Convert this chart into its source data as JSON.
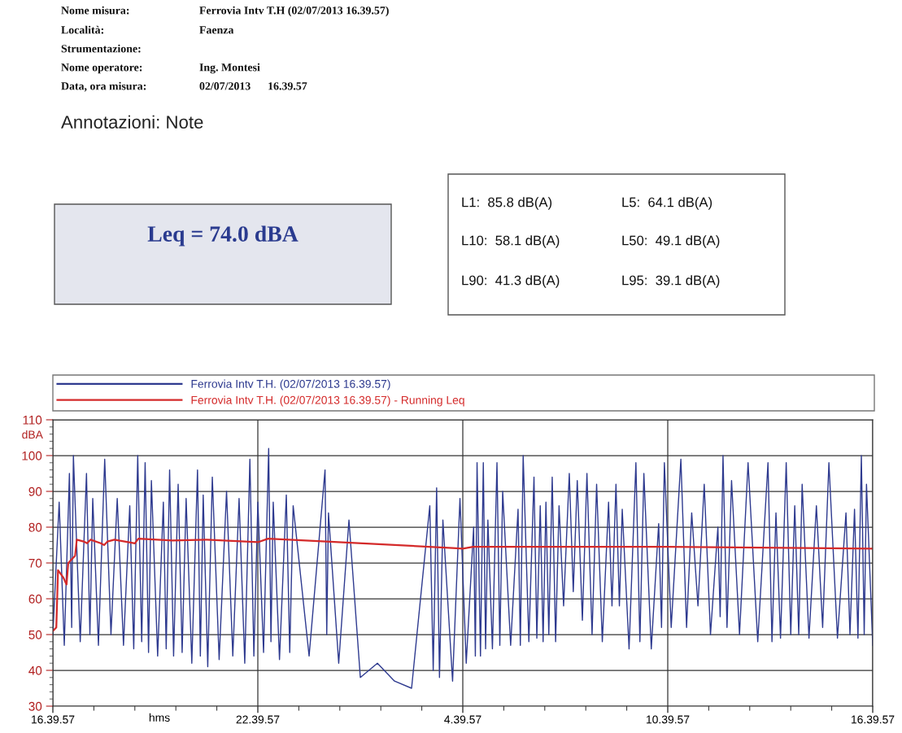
{
  "chart_data": {
    "type": "line",
    "annotations": [
      "Nome misura:",
      "Ferrovia Intv T.H (02/07/2013 16.39.57)",
      "Località:",
      "Faenza",
      "Strumentazione:",
      "Nome operatore:",
      "Ing. Montesi",
      "Data, ora misura:",
      "02/07/2013      16.39.57",
      "Annotazioni: Note",
      "Leq = 74.0 dBA",
      "L1:  85.8 dB(A)",
      "L5:  64.1 dB(A)",
      "L10:  58.1 dB(A)",
      "L50:  49.1 dB(A)",
      "L90:  41.3 dB(A)",
      "L95:  39.1 dB(A)"
    ],
    "xlabel": "hms",
    "ylabel": "dBA",
    "xlim": [
      "2013-07-02T16:39:57",
      "2013-07-03T16:39:57"
    ],
    "ylim": [
      30,
      110
    ],
    "xticks": [
      {
        "value": "2013-07-02T16:39:57",
        "label": "16.39.57"
      },
      {
        "value": "2013-07-02T17:51:57",
        "label": null
      },
      {
        "value": "2013-07-02T19:03:57",
        "label": null
      },
      {
        "value": "2013-07-02T20:15:57",
        "label": null
      },
      {
        "value": "2013-07-02T21:27:57",
        "label": null
      },
      {
        "value": "2013-07-02T22:39:57",
        "label": "22.39.57"
      },
      {
        "value": "2013-07-02T23:51:57",
        "label": null
      },
      {
        "value": "2013-07-03T01:03:57",
        "label": null
      },
      {
        "value": "2013-07-03T02:15:57",
        "label": null
      },
      {
        "value": "2013-07-03T03:27:57",
        "label": null
      },
      {
        "value": "2013-07-03T04:39:57",
        "label": "4.39.57"
      },
      {
        "value": "2013-07-03T05:51:57",
        "label": null
      },
      {
        "value": "2013-07-03T07:03:57",
        "label": null
      },
      {
        "value": "2013-07-03T08:15:57",
        "label": null
      },
      {
        "value": "2013-07-03T09:27:57",
        "label": null
      },
      {
        "value": "2013-07-03T10:39:57",
        "label": "10.39.57"
      },
      {
        "value": "2013-07-03T11:51:57",
        "label": null
      },
      {
        "value": "2013-07-03T13:03:57",
        "label": null
      },
      {
        "value": "2013-07-03T14:15:57",
        "label": null
      },
      {
        "value": "2013-07-03T15:27:57",
        "label": null
      },
      {
        "value": "2013-07-03T16:39:57",
        "label": "16.39.57"
      }
    ],
    "yticks": [
      30,
      {
        "value": 32,
        "label": null
      },
      {
        "value": 34,
        "label": null
      },
      {
        "value": 36,
        "label": null
      },
      {
        "value": 38,
        "label": null
      },
      40,
      {
        "value": 42,
        "label": null
      },
      {
        "value": 44,
        "label": null
      },
      {
        "value": 46,
        "label": null
      },
      {
        "value": 48,
        "label": null
      },
      50,
      {
        "value": 52,
        "label": null
      },
      {
        "value": 54,
        "label": null
      },
      {
        "value": 56,
        "label": null
      },
      {
        "value": 58,
        "label": null
      },
      60,
      {
        "value": 62,
        "label": null
      },
      {
        "value": 64,
        "label": null
      },
      {
        "value": 66,
        "label": null
      },
      {
        "value": 68,
        "label": null
      },
      70,
      {
        "value": 72,
        "label": null
      },
      {
        "value": 74,
        "label": null
      },
      {
        "value": 76,
        "label": null
      },
      {
        "value": 78,
        "label": null
      },
      80,
      {
        "value": 82,
        "label": null
      },
      {
        "value": 84,
        "label": null
      },
      {
        "value": 86,
        "label": null
      },
      {
        "value": 88,
        "label": null
      },
      90,
      {
        "value": 92,
        "label": null
      },
      {
        "value": 94,
        "label": null
      },
      {
        "value": 96,
        "label": null
      },
      {
        "value": 98,
        "label": null
      },
      100,
      {
        "value": 102,
        "label": null
      },
      {
        "value": 104,
        "label": null
      },
      {
        "value": 106,
        "label": null
      },
      {
        "value": 108,
        "label": null
      },
      110
    ],
    "grid": true,
    "legend": "top",
    "series": [
      {
        "name": "Ferrovia Intv T.H. (02/07/2013 16.39.57)",
        "color": "#2e3a8f",
        "x": [
          "2013-07-02T16:39:57",
          "2013-07-02T16:51",
          "2013-07-02T17:00",
          "2013-07-02T17:09",
          "2013-07-02T17:13",
          "2013-07-02T17:16",
          "2013-07-02T17:28",
          "2013-07-02T17:39",
          "2013-07-02T17:45",
          "2013-07-02T17:50",
          "2013-07-02T18:00",
          "2013-07-02T18:11",
          "2013-07-02T18:22",
          "2013-07-02T18:33",
          "2013-07-02T18:44",
          "2013-07-02T18:55",
          "2013-07-02T19:02",
          "2013-07-02T19:09",
          "2013-07-02T19:16",
          "2013-07-02T19:22",
          "2013-07-02T19:28",
          "2013-07-02T19:33",
          "2013-07-02T19:44",
          "2013-07-02T19:54",
          "2013-07-02T19:59",
          "2013-07-02T20:05",
          "2013-07-02T20:12",
          "2013-07-02T20:20",
          "2013-07-02T20:27",
          "2013-07-02T20:34",
          "2013-07-02T20:44",
          "2013-07-02T20:54",
          "2013-07-02T20:59",
          "2013-07-02T21:04",
          "2013-07-02T21:12",
          "2013-07-02T21:20",
          "2013-07-02T21:32",
          "2013-07-02T21:45",
          "2013-07-02T21:56",
          "2013-07-02T22:07",
          "2013-07-02T22:17",
          "2013-07-02T22:26",
          "2013-07-02T22:33",
          "2013-07-02T22:40",
          "2013-07-02T22:50",
          "2013-07-02T22:59",
          "2013-07-02T23:03",
          "2013-07-02T23:07",
          "2013-07-02T23:18",
          "2013-07-02T23:30",
          "2013-07-02T23:36",
          "2013-07-02T23:42",
          "2013-07-03T00:10",
          "2013-07-03T00:38",
          "2013-07-03T00:41",
          "2013-07-03T00:44",
          "2013-07-03T01:02",
          "2013-07-03T01:20",
          "2013-07-03T01:40",
          "2013-07-03T02:10",
          "2013-07-03T02:40",
          "2013-07-03T03:10",
          "2013-07-03T03:42",
          "2013-07-03T03:48",
          "2013-07-03T03:54",
          "2013-07-03T03:59",
          "2013-07-03T04:05",
          "2013-07-03T04:22",
          "2013-07-03T04:35",
          "2013-07-03T04:46",
          "2013-07-03T04:59",
          "2013-07-03T05:02",
          "2013-07-03T05:05",
          "2013-07-03T05:11",
          "2013-07-03T05:16",
          "2013-07-03T05:20",
          "2013-07-03T05:24",
          "2013-07-03T05:32",
          "2013-07-03T05:40",
          "2013-07-03T05:45",
          "2013-07-03T05:50",
          "2013-07-03T06:04",
          "2013-07-03T06:17",
          "2013-07-03T06:21",
          "2013-07-03T06:26",
          "2013-07-03T06:36",
          "2013-07-03T06:45",
          "2013-07-03T06:50",
          "2013-07-03T06:56",
          "2013-07-03T07:01",
          "2013-07-03T07:06",
          "2013-07-03T07:11",
          "2013-07-03T07:17",
          "2013-07-03T07:23",
          "2013-07-03T07:29",
          "2013-07-03T07:37",
          "2013-07-03T07:47",
          "2013-07-03T07:54",
          "2013-07-03T08:01",
          "2013-07-03T08:10",
          "2013-07-03T08:18",
          "2013-07-03T08:27",
          "2013-07-03T08:35",
          "2013-07-03T08:45",
          "2013-07-03T08:56",
          "2013-07-03T09:02",
          "2013-07-03T09:09",
          "2013-07-03T09:15",
          "2013-07-03T09:20",
          "2013-07-03T09:32",
          "2013-07-03T09:44",
          "2013-07-03T09:51",
          "2013-07-03T09:58",
          "2013-07-03T10:11",
          "2013-07-03T10:24",
          "2013-07-03T10:29",
          "2013-07-03T10:34",
          "2013-07-03T10:46",
          "2013-07-03T11:03",
          "2013-07-03T11:13",
          "2013-07-03T11:22",
          "2013-07-03T11:33",
          "2013-07-03T11:44",
          "2013-07-03T11:55",
          "2013-07-03T12:08",
          "2013-07-03T12:12",
          "2013-07-03T12:17",
          "2013-07-03T12:24",
          "2013-07-03T12:32",
          "2013-07-03T12:46",
          "2013-07-03T13:01",
          "2013-07-03T13:18",
          "2013-07-03T13:36",
          "2013-07-03T13:43",
          "2013-07-03T13:50",
          "2013-07-03T13:58",
          "2013-07-03T14:08",
          "2013-07-03T14:16",
          "2013-07-03T14:23",
          "2013-07-03T14:30",
          "2013-07-03T14:36",
          "2013-07-03T14:48",
          "2013-07-03T15:01",
          "2013-07-03T15:12",
          "2013-07-03T15:23",
          "2013-07-03T15:38",
          "2013-07-03T15:53",
          "2013-07-03T16:00",
          "2013-07-03T16:08",
          "2013-07-03T16:14",
          "2013-07-03T16:20",
          "2013-07-03T16:25",
          "2013-07-03T16:29",
          "2013-07-03T16:39:57"
        ],
        "values": [
          50,
          87,
          47,
          95,
          52,
          100,
          48,
          95,
          50,
          88,
          47,
          99,
          50,
          88,
          47,
          86,
          46,
          100,
          48,
          98,
          45,
          93,
          44,
          87,
          46,
          96,
          44,
          92,
          45,
          88,
          42,
          96,
          44,
          89,
          41,
          94,
          43,
          90,
          44,
          88,
          42,
          99,
          44,
          87,
          45,
          102,
          48,
          87,
          43,
          89,
          45,
          86,
          44,
          96,
          50,
          84,
          42,
          82,
          38,
          42,
          37,
          35,
          86,
          40,
          91,
          38,
          82,
          37,
          88,
          42,
          80,
          44,
          98,
          44,
          98,
          46,
          82,
          46,
          98,
          47,
          90,
          47,
          85,
          47,
          100,
          48,
          94,
          49,
          86,
          48,
          87,
          50,
          94,
          48,
          86,
          58,
          95,
          62,
          93,
          54,
          95,
          50,
          92,
          48,
          87,
          58,
          92,
          58,
          85,
          46,
          98,
          48,
          95,
          46,
          81,
          52,
          98,
          52,
          99,
          52,
          84,
          58,
          92,
          50,
          80,
          55,
          100,
          52,
          93,
          50,
          98,
          48,
          98,
          48,
          84,
          49,
          98,
          50,
          86,
          50,
          92,
          49,
          86,
          52,
          98,
          49,
          84,
          50,
          85,
          49,
          100,
          50,
          92,
          47
        ]
      },
      {
        "name": "Ferrovia Intv T.H. (02/07/2013 16.39.57) - Running Leq",
        "color": "#d42a2a",
        "x": [
          "2013-07-02T16:39:57",
          "2013-07-02T16:46",
          "2013-07-02T16:49",
          "2013-07-02T16:58",
          "2013-07-02T17:04",
          "2013-07-02T17:07",
          "2013-07-02T17:13",
          "2013-07-02T17:19",
          "2013-07-02T17:22",
          "2013-07-02T17:34",
          "2013-07-02T17:40",
          "2013-07-02T17:46",
          "2013-07-02T18:04",
          "2013-07-02T18:10",
          "2013-07-02T18:16",
          "2013-07-02T18:28",
          "2013-07-02T19:04",
          "2013-07-02T19:10",
          "2013-07-02T20:10",
          "2013-07-02T21:10",
          "2013-07-02T22:40",
          "2013-07-02T22:58",
          "2013-07-03T00:40",
          "2013-07-03T04:22",
          "2013-07-03T04:40",
          "2013-07-03T04:58",
          "2013-07-03T10:40",
          "2013-07-03T16:39:57"
        ],
        "values": [
          51,
          52,
          68,
          66,
          64,
          70,
          71,
          72,
          76.5,
          76,
          75.5,
          76.5,
          75.5,
          75,
          76,
          76.5,
          75.5,
          76.8,
          76.3,
          76.5,
          75.8,
          76.8,
          76,
          74.2,
          74,
          74.5,
          74.5,
          74
        ]
      }
    ]
  }
}
